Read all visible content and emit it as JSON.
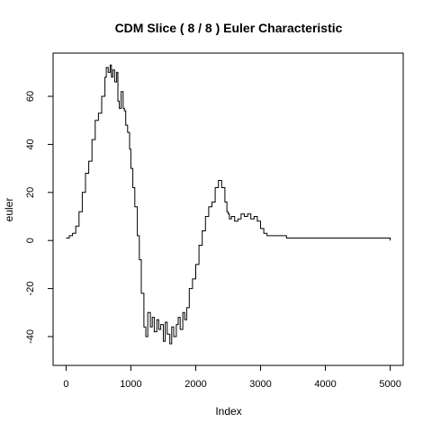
{
  "chart_data": {
    "type": "line",
    "title": "CDM Slice ( 8 / 8 ) Euler Characteristic",
    "xlabel": "Index",
    "ylabel": "euler",
    "xlim": [
      -200,
      5200
    ],
    "ylim": [
      -52,
      78
    ],
    "x_ticks": [
      0,
      1000,
      2000,
      3000,
      4000,
      5000
    ],
    "x_tick_labels": [
      "0",
      "1000",
      "2000",
      "3000",
      "4000",
      "5000"
    ],
    "y_ticks": [
      -40,
      -20,
      0,
      20,
      40,
      60
    ],
    "y_tick_labels": [
      "-40",
      "-20",
      "0",
      "20",
      "40",
      "60"
    ],
    "grid": false,
    "legend": "none",
    "series": [
      {
        "x": [
          0,
          50,
          100,
          150,
          200,
          250,
          300,
          350,
          400,
          450,
          500,
          550,
          600,
          620,
          650,
          680,
          700,
          720,
          750,
          780,
          800,
          820,
          850,
          880,
          900,
          920,
          950,
          980,
          1000,
          1030,
          1060,
          1100,
          1130,
          1160,
          1200,
          1230,
          1260,
          1300,
          1330,
          1360,
          1400,
          1430,
          1460,
          1500,
          1530,
          1560,
          1600,
          1630,
          1660,
          1700,
          1730,
          1760,
          1800,
          1830,
          1860,
          1900,
          1950,
          2000,
          2050,
          2100,
          2150,
          2200,
          2250,
          2300,
          2350,
          2400,
          2450,
          2480,
          2500,
          2520,
          2550,
          2600,
          2650,
          2700,
          2750,
          2800,
          2850,
          2900,
          2950,
          3000,
          3050,
          3100,
          3150,
          3200,
          3300,
          3400,
          3500,
          3550,
          4000,
          4500,
          4990,
          5000
        ],
        "y": [
          1,
          2,
          3,
          6,
          12,
          20,
          28,
          33,
          42,
          50,
          53,
          60,
          68,
          72,
          70,
          73,
          68,
          71,
          66,
          70,
          58,
          55,
          62,
          55,
          54,
          48,
          45,
          38,
          30,
          22,
          14,
          2,
          -8,
          -22,
          -36,
          -40,
          -30,
          -36,
          -32,
          -38,
          -33,
          -37,
          -35,
          -42,
          -34,
          -39,
          -43,
          -36,
          -40,
          -35,
          -32,
          -37,
          -30,
          -33,
          -28,
          -20,
          -16,
          -10,
          -2,
          4,
          10,
          14,
          16,
          22,
          25,
          22,
          16,
          12,
          11,
          9,
          10,
          8,
          9,
          11,
          10,
          11,
          9,
          10,
          8,
          5,
          3,
          2,
          2,
          2,
          2,
          1,
          1,
          1,
          1,
          1,
          1,
          0
        ]
      }
    ]
  }
}
